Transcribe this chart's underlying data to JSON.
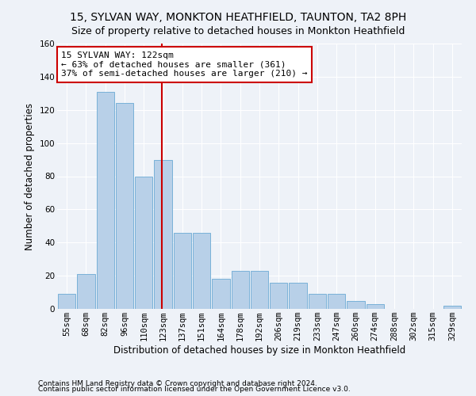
{
  "title": "15, SYLVAN WAY, MONKTON HEATHFIELD, TAUNTON, TA2 8PH",
  "subtitle": "Size of property relative to detached houses in Monkton Heathfield",
  "xlabel": "Distribution of detached houses by size in Monkton Heathfield",
  "ylabel": "Number of detached properties",
  "categories": [
    "55sqm",
    "68sqm",
    "82sqm",
    "96sqm",
    "110sqm",
    "123sqm",
    "137sqm",
    "151sqm",
    "164sqm",
    "178sqm",
    "192sqm",
    "206sqm",
    "219sqm",
    "233sqm",
    "247sqm",
    "260sqm",
    "274sqm",
    "288sqm",
    "302sqm",
    "315sqm",
    "329sqm"
  ],
  "values": [
    9,
    21,
    131,
    124,
    80,
    90,
    46,
    46,
    18,
    23,
    23,
    16,
    16,
    9,
    9,
    5,
    3,
    0,
    0,
    0,
    2
  ],
  "bar_color": "#b8d0e8",
  "bar_edge_color": "#6aaad4",
  "annotation_line1": "15 SYLVAN WAY: 122sqm",
  "annotation_line2": "← 63% of detached houses are smaller (361)",
  "annotation_line3": "37% of semi-detached houses are larger (210) →",
  "annotation_box_color": "#ffffff",
  "annotation_box_edge_color": "#cc0000",
  "vline_color": "#cc0000",
  "footer1": "Contains HM Land Registry data © Crown copyright and database right 2024.",
  "footer2": "Contains public sector information licensed under the Open Government Licence v3.0.",
  "ylim": [
    0,
    160
  ],
  "yticks": [
    0,
    20,
    40,
    60,
    80,
    100,
    120,
    140,
    160
  ],
  "title_fontsize": 10,
  "subtitle_fontsize": 9,
  "ylabel_fontsize": 8.5,
  "xlabel_fontsize": 8.5,
  "tick_fontsize": 7.5,
  "annotation_fontsize": 8,
  "footer_fontsize": 6.5,
  "bg_color": "#eef2f8",
  "plot_bg_color": "#eef2f8",
  "vline_xindex": 4.93
}
